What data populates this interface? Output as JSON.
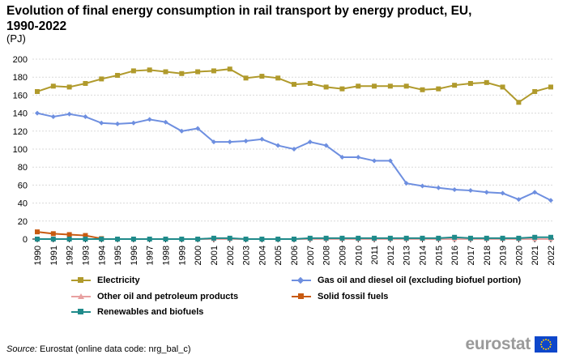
{
  "title": "Evolution of final energy consumption in rail transport by energy product, EU, 1990-2022",
  "unit": "(PJ)",
  "source": {
    "label": "Source:",
    "text": "Eurostat (online data code: nrg_bal_c)"
  },
  "logo_text": "eurostat",
  "chart_data": {
    "type": "line",
    "title": "Evolution of final energy consumption in rail transport by energy product, EU, 1990-2022",
    "ylabel": "(PJ)",
    "xlabel": "",
    "ylim": [
      0,
      200
    ],
    "yticks": [
      0,
      20,
      40,
      60,
      80,
      100,
      120,
      140,
      160,
      180,
      200
    ],
    "grid": true,
    "legend_position": "bottom",
    "categories": [
      "1990",
      "1991",
      "1992",
      "1993",
      "1994",
      "1995",
      "1996",
      "1997",
      "1998",
      "1999",
      "2000",
      "2001",
      "2002",
      "2003",
      "2004",
      "2005",
      "2006",
      "2007",
      "2008",
      "2009",
      "2010",
      "2011",
      "2012",
      "2013",
      "2014",
      "2015",
      "2016",
      "2017",
      "2018",
      "2019",
      "2020",
      "2021",
      "2022"
    ],
    "series": [
      {
        "name": "Electricity",
        "color": "#b09a2c",
        "marker": "square",
        "values": [
          164,
          170,
          169,
          173,
          178,
          182,
          187,
          188,
          186,
          184,
          186,
          187,
          189,
          179,
          181,
          179,
          172,
          173,
          169,
          167,
          170,
          170,
          170,
          170,
          166,
          167,
          171,
          173,
          174,
          169,
          152,
          164,
          169
        ]
      },
      {
        "name": "Gas oil and diesel oil (excluding biofuel portion)",
        "color": "#6e8fe0",
        "marker": "diamond",
        "values": [
          140,
          136,
          139,
          136,
          129,
          128,
          129,
          133,
          130,
          120,
          123,
          108,
          108,
          109,
          111,
          104,
          100,
          108,
          104,
          91,
          91,
          87,
          87,
          62,
          59,
          57,
          55,
          54,
          52,
          51,
          44,
          52,
          43
        ]
      },
      {
        "name": "Other oil and petroleum products",
        "color": "#e8a0a0",
        "marker": "triangle",
        "values": [
          0,
          0,
          0,
          0,
          0,
          0,
          0,
          0,
          0,
          0,
          0,
          0,
          0,
          0,
          0,
          0,
          0,
          0,
          0,
          0,
          0,
          0,
          0,
          0,
          0,
          0,
          0,
          0,
          0,
          0,
          0,
          0,
          0
        ]
      },
      {
        "name": "Solid fossil fuels",
        "color": "#c85a10",
        "marker": "square",
        "values": [
          8,
          6,
          5,
          4,
          0.5,
          null,
          null,
          null,
          null,
          null,
          null,
          null,
          null,
          null,
          null,
          null,
          null,
          null,
          null,
          null,
          null,
          null,
          null,
          null,
          null,
          null,
          null,
          null,
          null,
          null,
          null,
          null,
          null
        ]
      },
      {
        "name": "Renewables and biofuels",
        "color": "#1f8a8a",
        "marker": "square",
        "values": [
          0,
          0,
          0,
          0,
          0,
          0,
          0,
          0,
          0,
          0,
          0,
          1,
          1,
          0,
          0,
          0,
          0,
          1,
          1,
          1,
          1,
          1,
          1,
          1,
          1,
          1,
          2,
          1,
          1,
          1,
          1,
          2,
          2
        ]
      }
    ]
  }
}
